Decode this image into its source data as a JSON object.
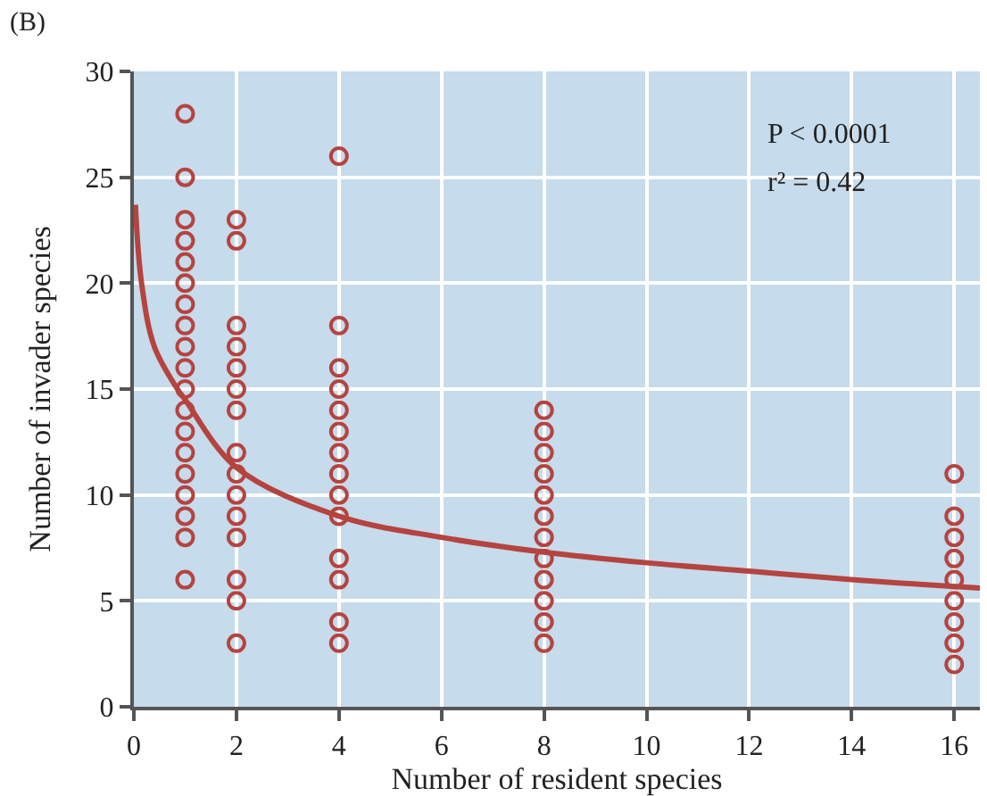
{
  "chart_data": {
    "type": "scatter",
    "title": "(B)",
    "xlabel": "Number of resident species",
    "ylabel": "Number of invader species",
    "series": [
      {
        "color": "#b5433f",
        "marker": "circle",
        "x": [
          1,
          1,
          1,
          1,
          1,
          1,
          1,
          1,
          1,
          1,
          1,
          1,
          1,
          1,
          1,
          1,
          1,
          1,
          1,
          2,
          2,
          2,
          2,
          2,
          2,
          2,
          2,
          2,
          2,
          2,
          2,
          2,
          2,
          2,
          4,
          4,
          4,
          4,
          4,
          4,
          4,
          4,
          4,
          4,
          4,
          4,
          4,
          4,
          8,
          8,
          8,
          8,
          8,
          8,
          8,
          8,
          8,
          8,
          8,
          8,
          16,
          16,
          16,
          16,
          16,
          16,
          16,
          16,
          16
        ],
        "values": [
          28,
          25,
          23,
          22,
          21,
          20,
          19,
          18,
          17,
          16,
          15,
          14,
          13,
          12,
          11,
          10,
          9,
          8,
          6,
          23,
          22,
          18,
          17,
          16,
          15,
          14,
          12,
          11,
          10,
          9,
          8,
          6,
          5,
          3,
          26,
          18,
          16,
          15,
          14,
          13,
          12,
          11,
          10,
          9,
          7,
          6,
          4,
          3,
          14,
          13,
          12,
          11,
          10,
          9,
          8,
          7,
          6,
          5,
          4,
          3,
          11,
          9,
          8,
          7,
          6,
          5,
          4,
          3,
          2
        ]
      },
      {
        "type": "line",
        "color": "#b5433f",
        "x": [
          0.03,
          0.15,
          0.4,
          0.85,
          1,
          2,
          4,
          6,
          8,
          10,
          12,
          14,
          16.5
        ],
        "values": [
          23.7,
          20,
          17,
          15,
          14.5,
          11.3,
          9,
          8,
          7.3,
          6.8,
          6.4,
          6,
          5.6
        ]
      }
    ],
    "annotations": [
      "P < 0.0001",
      "r² = 0.42"
    ],
    "xlim": [
      0,
      16.5
    ],
    "ylim": [
      0,
      30
    ],
    "xticks": [
      0,
      2,
      4,
      6,
      8,
      10,
      12,
      14,
      16
    ],
    "yticks": [
      0,
      5,
      10,
      15,
      20,
      25,
      30
    ],
    "grid": true,
    "legend": false
  }
}
